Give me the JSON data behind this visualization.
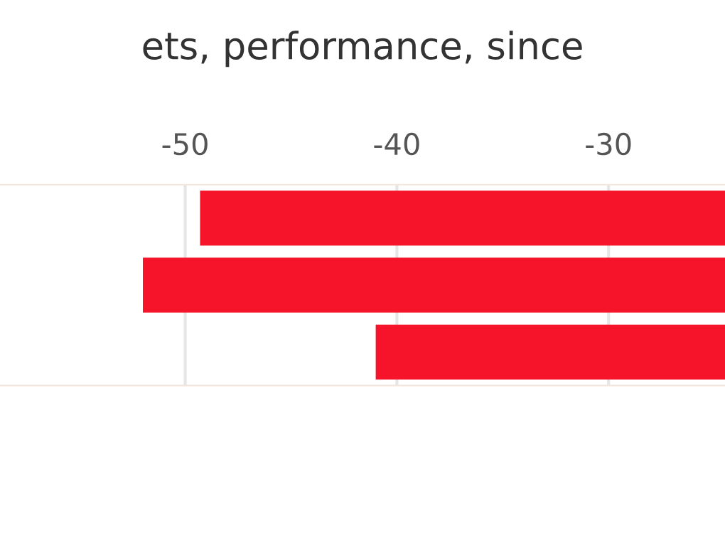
{
  "chart_data": {
    "type": "bar",
    "orientation": "horizontal",
    "title": "ets, performance, since",
    "categories": [
      null,
      null,
      null
    ],
    "series": [
      {
        "color": "#f5142a",
        "values": [
          -49.3,
          -52.0,
          -41.0
        ]
      }
    ],
    "xlim": [
      -58.75,
      -24.5
    ],
    "xticks": [
      -50,
      -40,
      -30
    ],
    "grid": "x",
    "legend": false
  }
}
